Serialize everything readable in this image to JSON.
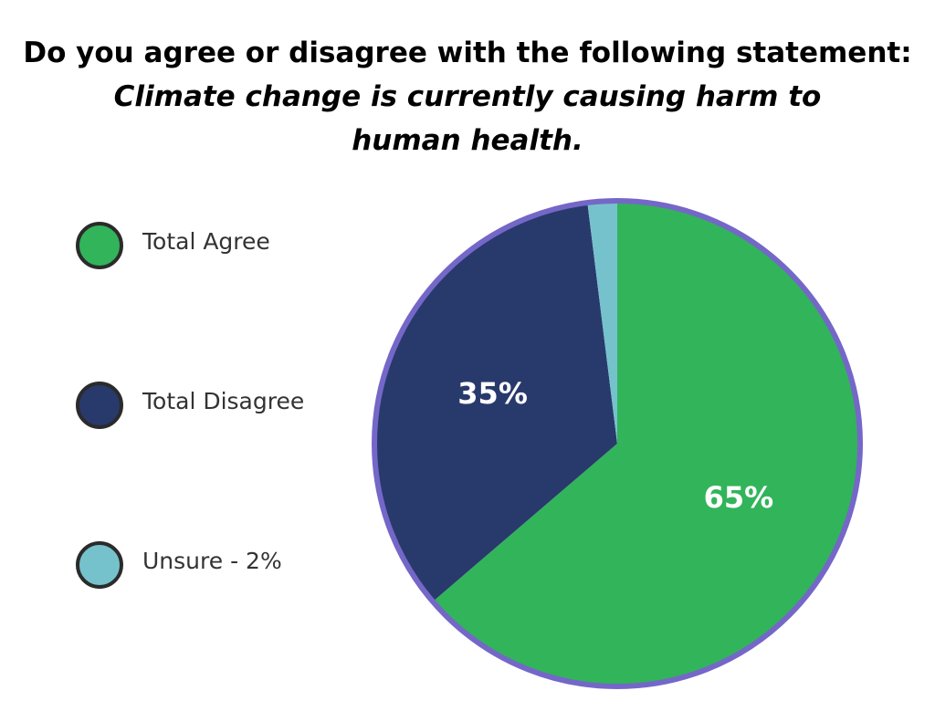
{
  "chart_data": {
    "type": "pie",
    "title": "Do you agree or disagree with the following statement:",
    "subtitle": "Climate change is currently causing harm to human health.",
    "categories": [
      "Total Agree",
      "Total Disagree",
      "Unsure - 2%"
    ],
    "values": [
      65,
      35,
      2
    ],
    "value_labels": [
      "65%",
      "35%",
      null
    ],
    "colors": [
      "#32b45a",
      "#283a6c",
      "#76c2cc"
    ],
    "edge_color": "#7467c8",
    "legend": "left"
  }
}
